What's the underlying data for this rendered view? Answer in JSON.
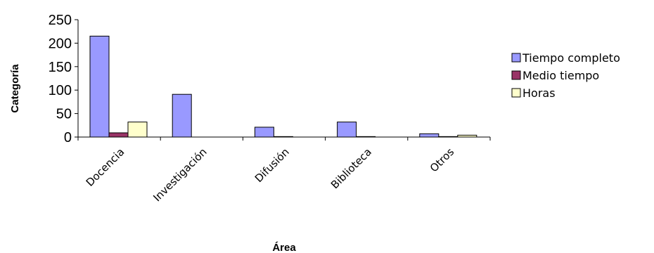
{
  "chart_data": {
    "type": "bar",
    "xlabel": "Área",
    "ylabel": "Categoría",
    "categories": [
      "Docencia",
      "Investigación",
      "Difusión",
      "Biblioteca",
      "Otros"
    ],
    "series": [
      {
        "name": "Tiempo completo",
        "values": [
          215,
          91,
          21,
          32,
          7
        ],
        "color": "#9999ff"
      },
      {
        "name": "Medio tiempo",
        "values": [
          9,
          0,
          1,
          1,
          1
        ],
        "color": "#993366"
      },
      {
        "name": "Horas",
        "values": [
          32,
          0,
          0,
          0,
          4
        ],
        "color": "#ffffcc"
      }
    ],
    "ylim": [
      0,
      250
    ],
    "yticks": [
      0,
      50,
      100,
      150,
      200,
      250
    ],
    "grid": false,
    "legend_position": "right"
  }
}
